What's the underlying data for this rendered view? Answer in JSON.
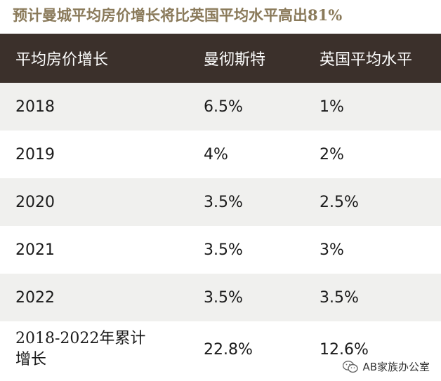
{
  "title": "预计曼城平均房价增长将比英国平均水平高出81%",
  "chart_data": {
    "type": "table",
    "columns": [
      "平均房价增长",
      "曼彻斯特",
      "英国平均水平"
    ],
    "rows": [
      {
        "label": "2018",
        "manchester": "6.5%",
        "uk": "1%"
      },
      {
        "label": "2019",
        "manchester": "4%",
        "uk": "2%"
      },
      {
        "label": "2020",
        "manchester": "3.5%",
        "uk": "2.5%"
      },
      {
        "label": "2021",
        "manchester": "3.5%",
        "uk": "3%"
      },
      {
        "label": "2022",
        "manchester": "3.5%",
        "uk": "3.5%"
      },
      {
        "label": "2018-2022年累计增长",
        "manchester": "22.8%",
        "uk": "12.6%"
      }
    ],
    "colors": {
      "header_bg": "#3b302b",
      "title": "#8a7a5a",
      "row_shade": "#f0f0ee"
    }
  },
  "watermark": {
    "icon": "wechat-icon",
    "text": "AB家族办公室"
  }
}
